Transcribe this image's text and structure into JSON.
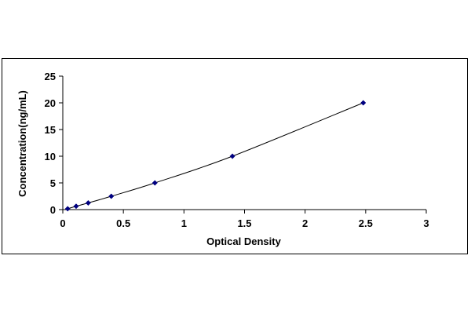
{
  "chart_data": {
    "type": "scatter",
    "title": "",
    "xlabel": "Optical Density",
    "ylabel": "Concentration(ng/mL)",
    "xlim": [
      0,
      3
    ],
    "ylim": [
      0,
      25
    ],
    "x_ticks": [
      0,
      0.5,
      1,
      1.5,
      2,
      2.5,
      3
    ],
    "x_tick_labels": [
      "0",
      "0.5",
      "1",
      "1.5",
      "2",
      "2.5",
      "3"
    ],
    "y_ticks": [
      0,
      5,
      10,
      15,
      20,
      25
    ],
    "y_tick_labels": [
      "0",
      "5",
      "10",
      "15",
      "20",
      "25"
    ],
    "grid": false,
    "legend": "none",
    "trendline": "smooth curve through points",
    "series": [
      {
        "color": "#000080",
        "marker": "diamond",
        "x": [
          0.04,
          0.11,
          0.21,
          0.4,
          0.76,
          1.4,
          2.48
        ],
        "y": [
          0.16,
          0.63,
          1.25,
          2.5,
          5,
          10,
          20
        ]
      }
    ]
  }
}
